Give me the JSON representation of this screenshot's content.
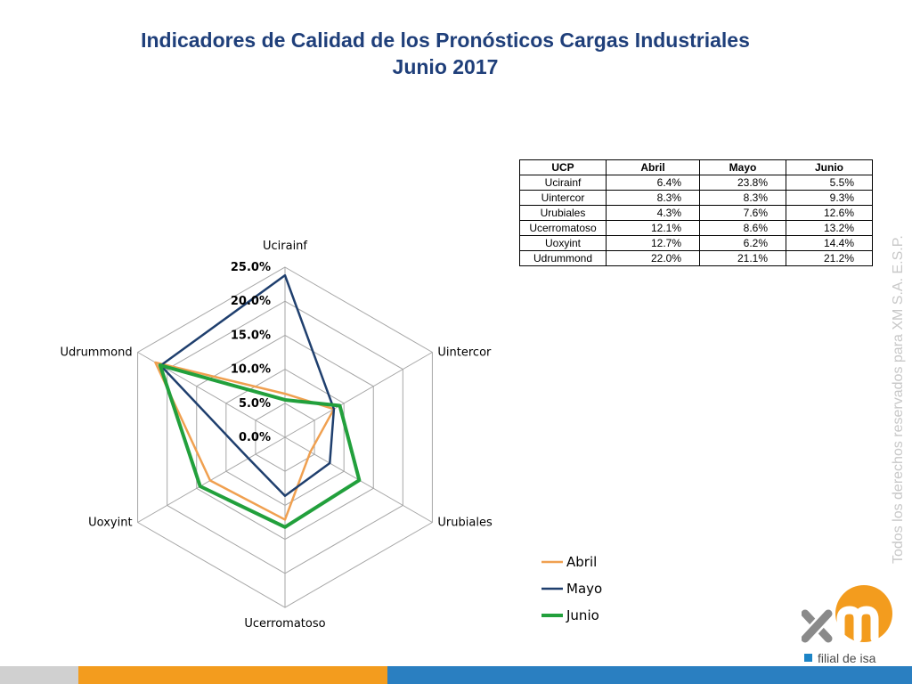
{
  "title": {
    "line1": "Indicadores de Calidad de los Pronósticos Cargas Industriales",
    "line2": "Junio 2017"
  },
  "table": {
    "headers": [
      "UCP",
      "Abril",
      "Mayo",
      "Junio"
    ],
    "rows": [
      [
        "Ucirainf",
        "6.4%",
        "23.8%",
        "5.5%"
      ],
      [
        "Uintercor",
        "8.3%",
        "8.3%",
        "9.3%"
      ],
      [
        "Urubiales",
        "4.3%",
        "7.6%",
        "12.6%"
      ],
      [
        "Ucerromatoso",
        "12.1%",
        "8.6%",
        "13.2%"
      ],
      [
        "Uoxyint",
        "12.7%",
        "6.2%",
        "14.4%"
      ],
      [
        "Udrummond",
        "22.0%",
        "21.1%",
        "21.2%"
      ]
    ]
  },
  "chart_data": {
    "type": "radar",
    "categories": [
      "Ucirainf",
      "Uintercor",
      "Urubiales",
      "Ucerromatoso",
      "Uoxyint",
      "Udrummond"
    ],
    "series": [
      {
        "name": "Abril",
        "values": [
          6.4,
          8.3,
          4.3,
          12.1,
          12.7,
          22.0
        ],
        "color": "#f0a050"
      },
      {
        "name": "Mayo",
        "values": [
          23.8,
          8.3,
          7.6,
          8.6,
          6.2,
          21.1
        ],
        "color": "#1f3f6e"
      },
      {
        "name": "Junio",
        "values": [
          5.5,
          9.3,
          12.6,
          13.2,
          14.4,
          21.2
        ],
        "color": "#22a03c"
      }
    ],
    "radial_ticks": [
      "0.0%",
      "5.0%",
      "10.0%",
      "15.0%",
      "20.0%",
      "25.0%"
    ],
    "range": [
      0,
      25
    ],
    "legend_position": "bottom-right",
    "grid": true
  },
  "side_text": "Todos los derechos reservados para XM S.A. E.S.P.",
  "logo": {
    "brand": "xm",
    "tagline": "filial de isa",
    "colors": {
      "orange": "#f39c1e",
      "gray": "#8a8a8a",
      "blue": "#1c84c6"
    }
  }
}
